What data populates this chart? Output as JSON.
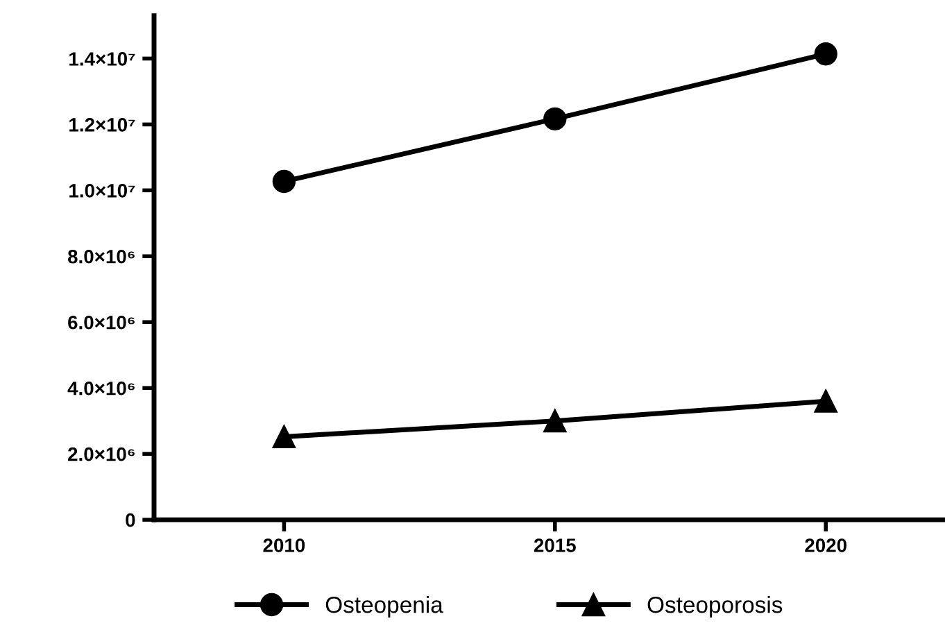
{
  "chart_data": {
    "type": "line",
    "x": [
      2010,
      2015,
      2020
    ],
    "series": [
      {
        "name": "Osteopenia",
        "color": "#000000",
        "marker": "circle",
        "values": [
          10270000,
          12170000,
          14140000
        ]
      },
      {
        "name": "Osteoporosis",
        "color": "#000000",
        "marker": "triangle",
        "values": [
          2520000,
          3000000,
          3600000
        ]
      }
    ],
    "xlim": [
      2007.6,
      2022.2
    ],
    "xticks": [
      2010,
      2015,
      2020
    ],
    "ylim": [
      0,
      15300000
    ],
    "yticks": [
      0,
      {
        "value": 2000000,
        "label": "2.0×10⁶"
      },
      {
        "value": 4000000,
        "label": "4.0×10⁶"
      },
      {
        "value": 6000000,
        "label": "6.0×10⁶"
      },
      {
        "value": 8000000,
        "label": "8.0×10⁶"
      },
      {
        "value": 10000000,
        "label": "1.0×10⁷"
      },
      {
        "value": 12000000,
        "label": "1.2×10⁷"
      },
      {
        "value": 14000000,
        "label": "1.4×10⁷"
      }
    ],
    "line_style": "solid",
    "grid": false,
    "legend": "bottom"
  }
}
